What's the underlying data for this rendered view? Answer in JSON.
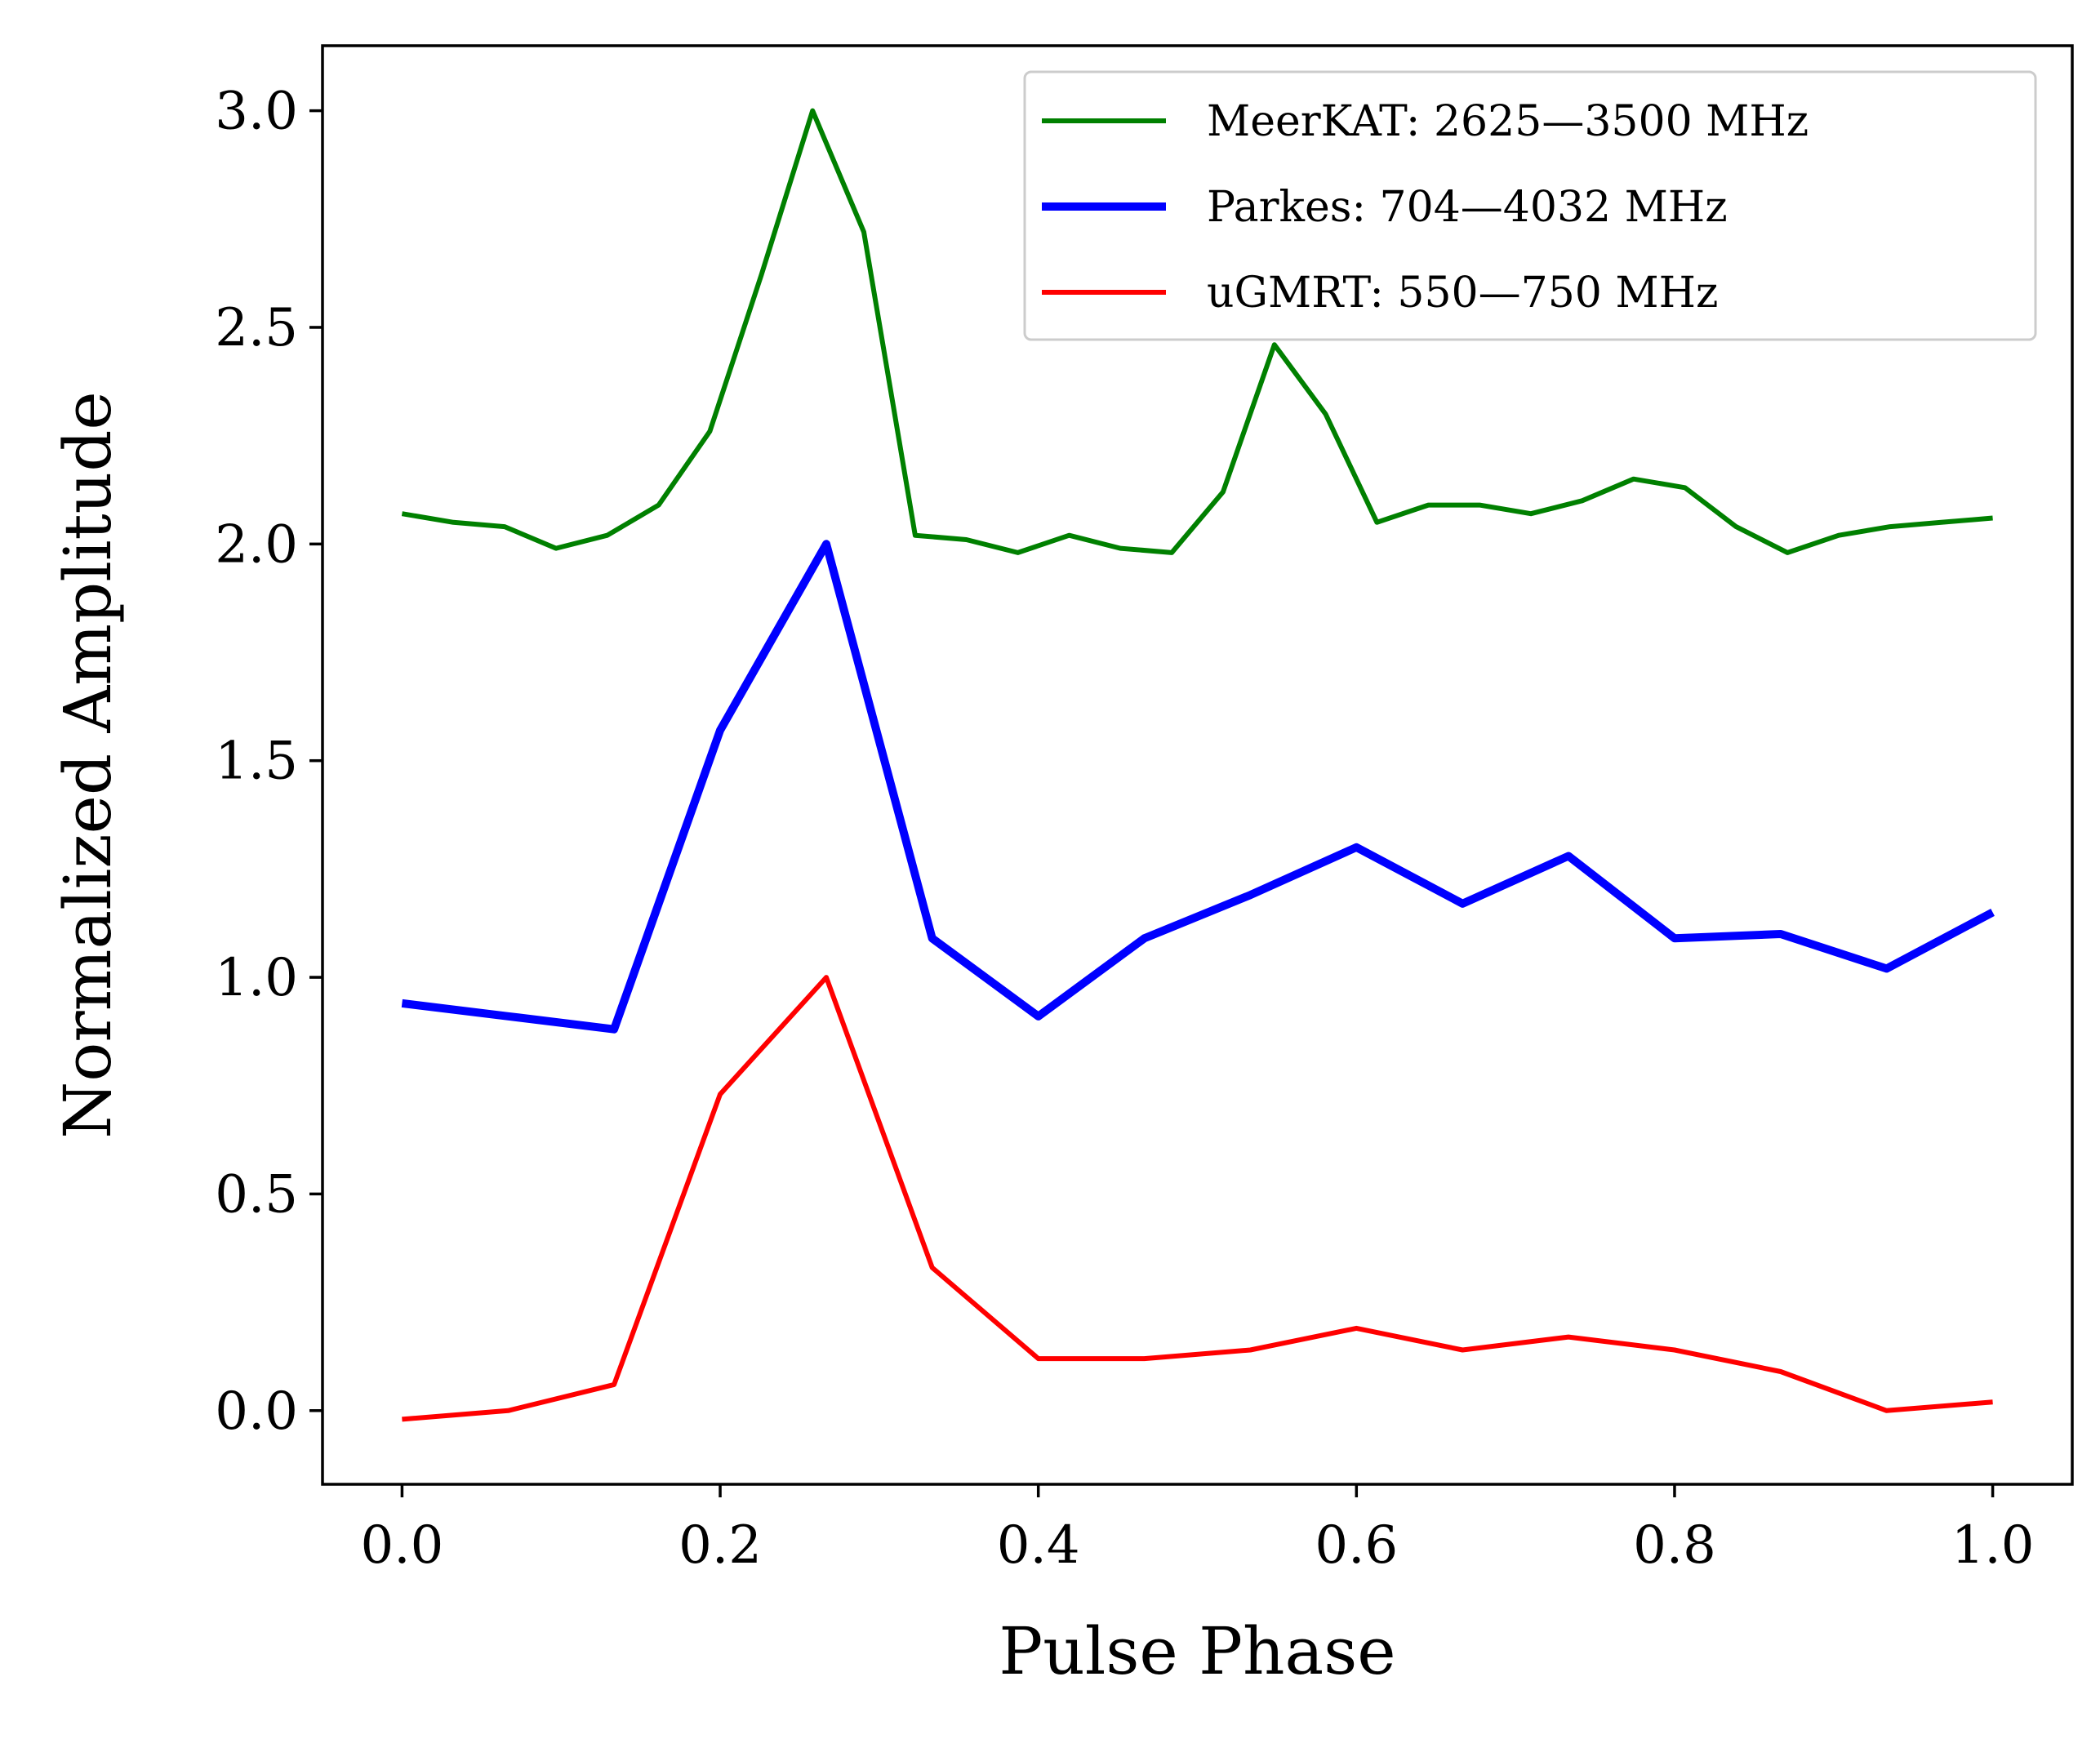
{
  "chart_data": {
    "type": "line",
    "title": "",
    "xlabel": "Pulse Phase",
    "ylabel": "Normalized Amplitude",
    "xlim": [
      -0.05,
      1.05
    ],
    "ylim": [
      -0.17,
      3.15
    ],
    "xticks": [
      0.0,
      0.2,
      0.4,
      0.6,
      0.8,
      1.0
    ],
    "xtick_labels": [
      "0.0",
      "0.2",
      "0.4",
      "0.6",
      "0.8",
      "1.0"
    ],
    "yticks": [
      0.0,
      0.5,
      1.0,
      1.5,
      2.0,
      2.5,
      3.0
    ],
    "ytick_labels": [
      "0.0",
      "0.5",
      "1.0",
      "1.5",
      "2.0",
      "2.5",
      "3.0"
    ],
    "grid": false,
    "legend_position": "top-right",
    "series": [
      {
        "name": "MeerKAT: 2625—3500 MHz",
        "color": "#008000",
        "width": "normal",
        "x": [
          0.0,
          0.0323,
          0.0645,
          0.0968,
          0.129,
          0.1613,
          0.1935,
          0.2258,
          0.2581,
          0.2903,
          0.3226,
          0.3548,
          0.3871,
          0.4194,
          0.4516,
          0.4839,
          0.5161,
          0.5484,
          0.5806,
          0.6129,
          0.6452,
          0.6774,
          0.7097,
          0.7419,
          0.7742,
          0.8065,
          0.8387,
          0.871,
          0.9032,
          0.9355,
          0.9677,
          1.0
        ],
        "y": [
          2.07,
          2.05,
          2.04,
          1.99,
          2.02,
          2.09,
          2.26,
          2.62,
          3.0,
          2.72,
          2.02,
          2.01,
          1.98,
          2.02,
          1.99,
          1.98,
          2.12,
          2.46,
          2.3,
          2.05,
          2.09,
          2.09,
          2.07,
          2.1,
          2.15,
          2.13,
          2.04,
          1.98,
          2.02,
          2.04,
          2.05,
          2.06
        ]
      },
      {
        "name": "Parkes: 704—4032 MHz",
        "color": "#0000ff",
        "width": "thick",
        "x": [
          0.0,
          0.0667,
          0.1333,
          0.2,
          0.2667,
          0.3333,
          0.4,
          0.4667,
          0.5333,
          0.6,
          0.6667,
          0.7333,
          0.8,
          0.8667,
          0.9333,
          1.0
        ],
        "y": [
          0.94,
          0.91,
          0.88,
          1.57,
          2.0,
          1.09,
          0.91,
          1.09,
          1.19,
          1.3,
          1.17,
          1.28,
          1.09,
          1.1,
          1.02,
          1.15
        ]
      },
      {
        "name": "uGMRT: 550—750 MHz",
        "color": "#ff0000",
        "width": "normal",
        "x": [
          0.0,
          0.0667,
          0.1333,
          0.2,
          0.2667,
          0.3333,
          0.4,
          0.4667,
          0.5333,
          0.6,
          0.6667,
          0.7333,
          0.8,
          0.8667,
          0.9333,
          1.0
        ],
        "y": [
          -0.02,
          0.0,
          0.06,
          0.73,
          1.0,
          0.33,
          0.12,
          0.12,
          0.14,
          0.19,
          0.14,
          0.17,
          0.14,
          0.09,
          0.0,
          0.02
        ]
      }
    ]
  }
}
